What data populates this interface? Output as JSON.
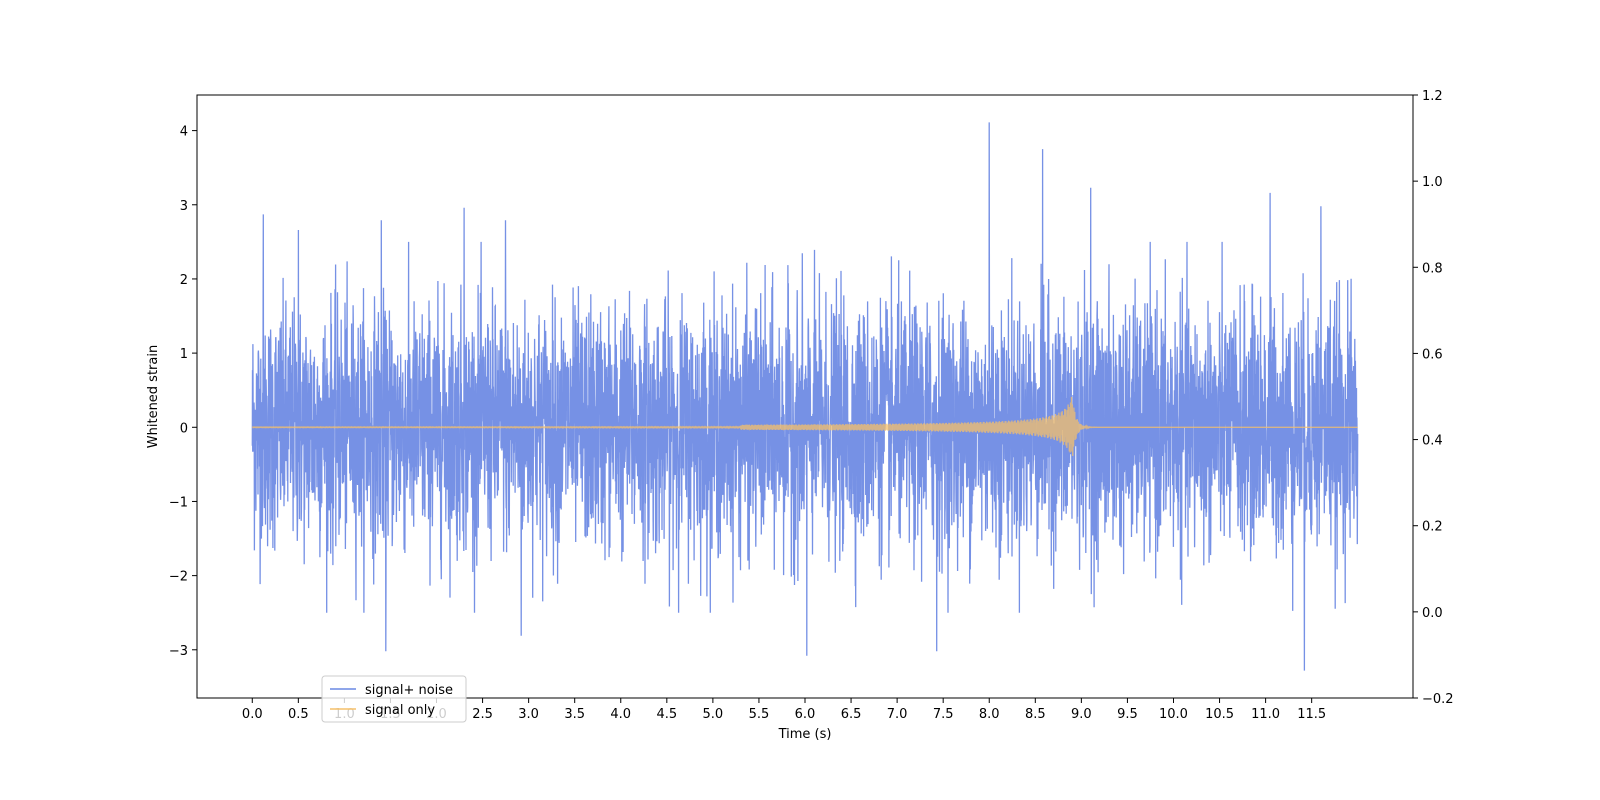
{
  "chart_data": {
    "type": "line",
    "title": "",
    "xlabel": "Time (s)",
    "ylabel": "Whitened strain",
    "xlim": [
      -0.6,
      12.6
    ],
    "ylim": [
      -3.65,
      4.48
    ],
    "y2lim": [
      -0.2,
      1.2
    ],
    "xticks": [
      "0.0",
      "0.5",
      "1.0",
      "1.5",
      "2.0",
      "2.5",
      "3.0",
      "3.5",
      "4.0",
      "4.5",
      "5.0",
      "5.5",
      "6.0",
      "6.5",
      "7.0",
      "7.5",
      "8.0",
      "8.5",
      "9.0",
      "9.5",
      "10.0",
      "10.5",
      "11.0",
      "11.5"
    ],
    "yticks": [
      "−3",
      "−2",
      "−1",
      "0",
      "1",
      "2",
      "3",
      "4"
    ],
    "y2ticks": [
      "−0.2",
      "0.0",
      "0.2",
      "0.4",
      "0.6",
      "0.8",
      "1.0",
      "1.2"
    ],
    "grid": false,
    "legend_position": "lower-left",
    "series": [
      {
        "name": "signal+ noise",
        "color": "#6a88e3",
        "x_range": [
          0.0,
          12.0
        ],
        "typical_amplitude": 1.3,
        "peaks": [
          {
            "x": 0.12,
            "y": 2.87
          },
          {
            "x": 0.5,
            "y": 2.66
          },
          {
            "x": 1.4,
            "y": 2.79
          },
          {
            "x": 1.45,
            "y": -3.02
          },
          {
            "x": 2.3,
            "y": 2.96
          },
          {
            "x": 2.75,
            "y": 2.79
          },
          {
            "x": 2.92,
            "y": -2.81
          },
          {
            "x": 6.02,
            "y": -3.08
          },
          {
            "x": 7.43,
            "y": -3.02
          },
          {
            "x": 8.0,
            "y": 4.11
          },
          {
            "x": 8.58,
            "y": 3.75
          },
          {
            "x": 9.1,
            "y": 3.23
          },
          {
            "x": 11.05,
            "y": 3.16
          },
          {
            "x": 11.42,
            "y": -3.28
          },
          {
            "x": 11.6,
            "y": 2.98
          }
        ]
      },
      {
        "name": "signal only",
        "color": "#f5c06a",
        "x_range": [
          0.0,
          12.0
        ],
        "chirp_start": 5.3,
        "merger_time": 8.9,
        "peak_amplitude": 0.45
      }
    ]
  }
}
